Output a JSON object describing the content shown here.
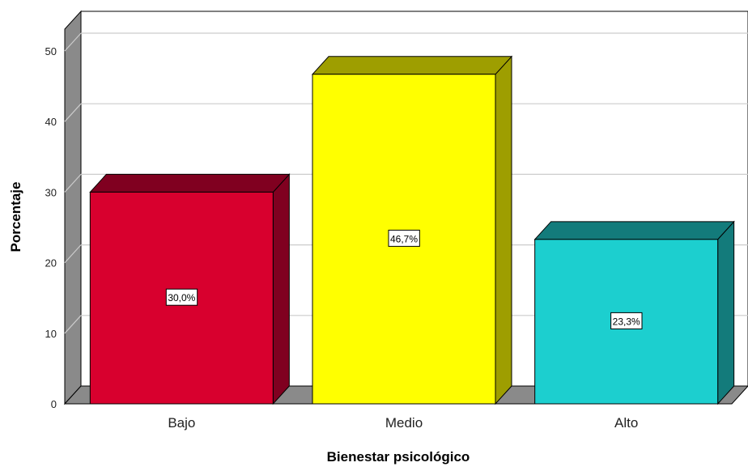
{
  "chart_data": {
    "type": "bar",
    "style": "3d",
    "categories": [
      "Bajo",
      "Medio",
      "Alto"
    ],
    "values": [
      30.0,
      46.7,
      23.3
    ],
    "data_labels": [
      "30,0%",
      "46,7%",
      "23,3%"
    ],
    "colors": {
      "front": [
        "#d8002e",
        "#ffff00",
        "#1ccfcf"
      ],
      "side": [
        "#800020",
        "#9e9e00",
        "#137b7b"
      ],
      "wall": "#ffffff",
      "floor": "#8a8a8a",
      "grid": "#cccccc"
    },
    "xlabel": "Bienestar psicológico",
    "ylabel": "Porcentaje",
    "ylim": [
      0,
      50
    ],
    "yticks": [
      0,
      10,
      20,
      30,
      40,
      50
    ],
    "grid": true,
    "legend": false
  }
}
